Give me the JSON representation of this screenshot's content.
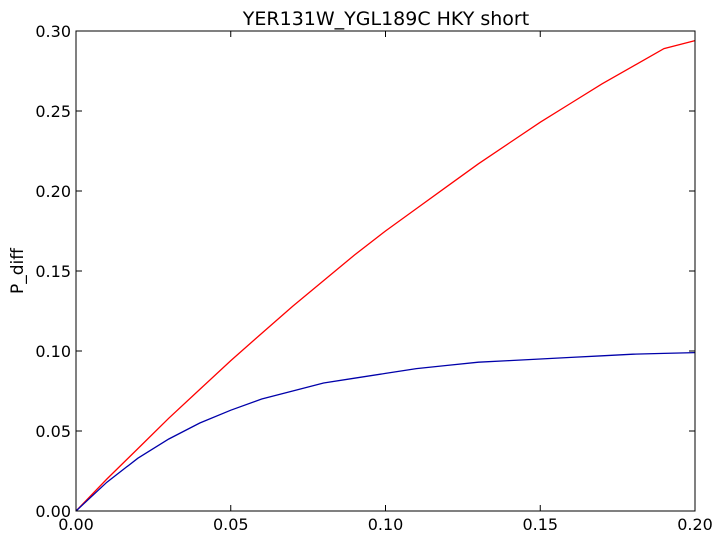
{
  "chart_data": {
    "type": "line",
    "title": "YER131W_YGL189C HKY short",
    "xlabel": "",
    "ylabel": "P_diff",
    "xlim": [
      0.0,
      0.2
    ],
    "ylim": [
      0.0,
      0.3
    ],
    "xticks": [
      0.0,
      0.05,
      0.1,
      0.15,
      0.2
    ],
    "xtick_labels": [
      "0.00",
      "0.05",
      "0.10",
      "0.15",
      "0.20"
    ],
    "yticks": [
      0.0,
      0.05,
      0.1,
      0.15,
      0.2,
      0.25,
      0.3
    ],
    "ytick_labels": [
      "0.00",
      "0.05",
      "0.10",
      "0.15",
      "0.20",
      "0.25",
      "0.30"
    ],
    "grid": false,
    "series": [
      {
        "color": "#ff0000",
        "x": [
          0.0,
          0.01,
          0.02,
          0.03,
          0.04,
          0.05,
          0.06,
          0.07,
          0.08,
          0.09,
          0.1,
          0.11,
          0.12,
          0.13,
          0.14,
          0.15,
          0.16,
          0.17,
          0.18,
          0.19,
          0.2
        ],
        "y": [
          0.0,
          0.02,
          0.039,
          0.058,
          0.076,
          0.094,
          0.111,
          0.128,
          0.144,
          0.16,
          0.175,
          0.189,
          0.203,
          0.217,
          0.23,
          0.243,
          0.255,
          0.267,
          0.278,
          0.289,
          0.294
        ]
      },
      {
        "color": "#0000aa",
        "x": [
          0.0,
          0.01,
          0.02,
          0.03,
          0.04,
          0.05,
          0.06,
          0.07,
          0.08,
          0.09,
          0.1,
          0.11,
          0.12,
          0.13,
          0.14,
          0.15,
          0.16,
          0.17,
          0.18,
          0.19,
          0.2
        ],
        "y": [
          0.0,
          0.018,
          0.033,
          0.045,
          0.055,
          0.063,
          0.07,
          0.075,
          0.08,
          0.083,
          0.086,
          0.089,
          0.091,
          0.093,
          0.094,
          0.095,
          0.096,
          0.097,
          0.098,
          0.0985,
          0.099
        ]
      }
    ]
  }
}
